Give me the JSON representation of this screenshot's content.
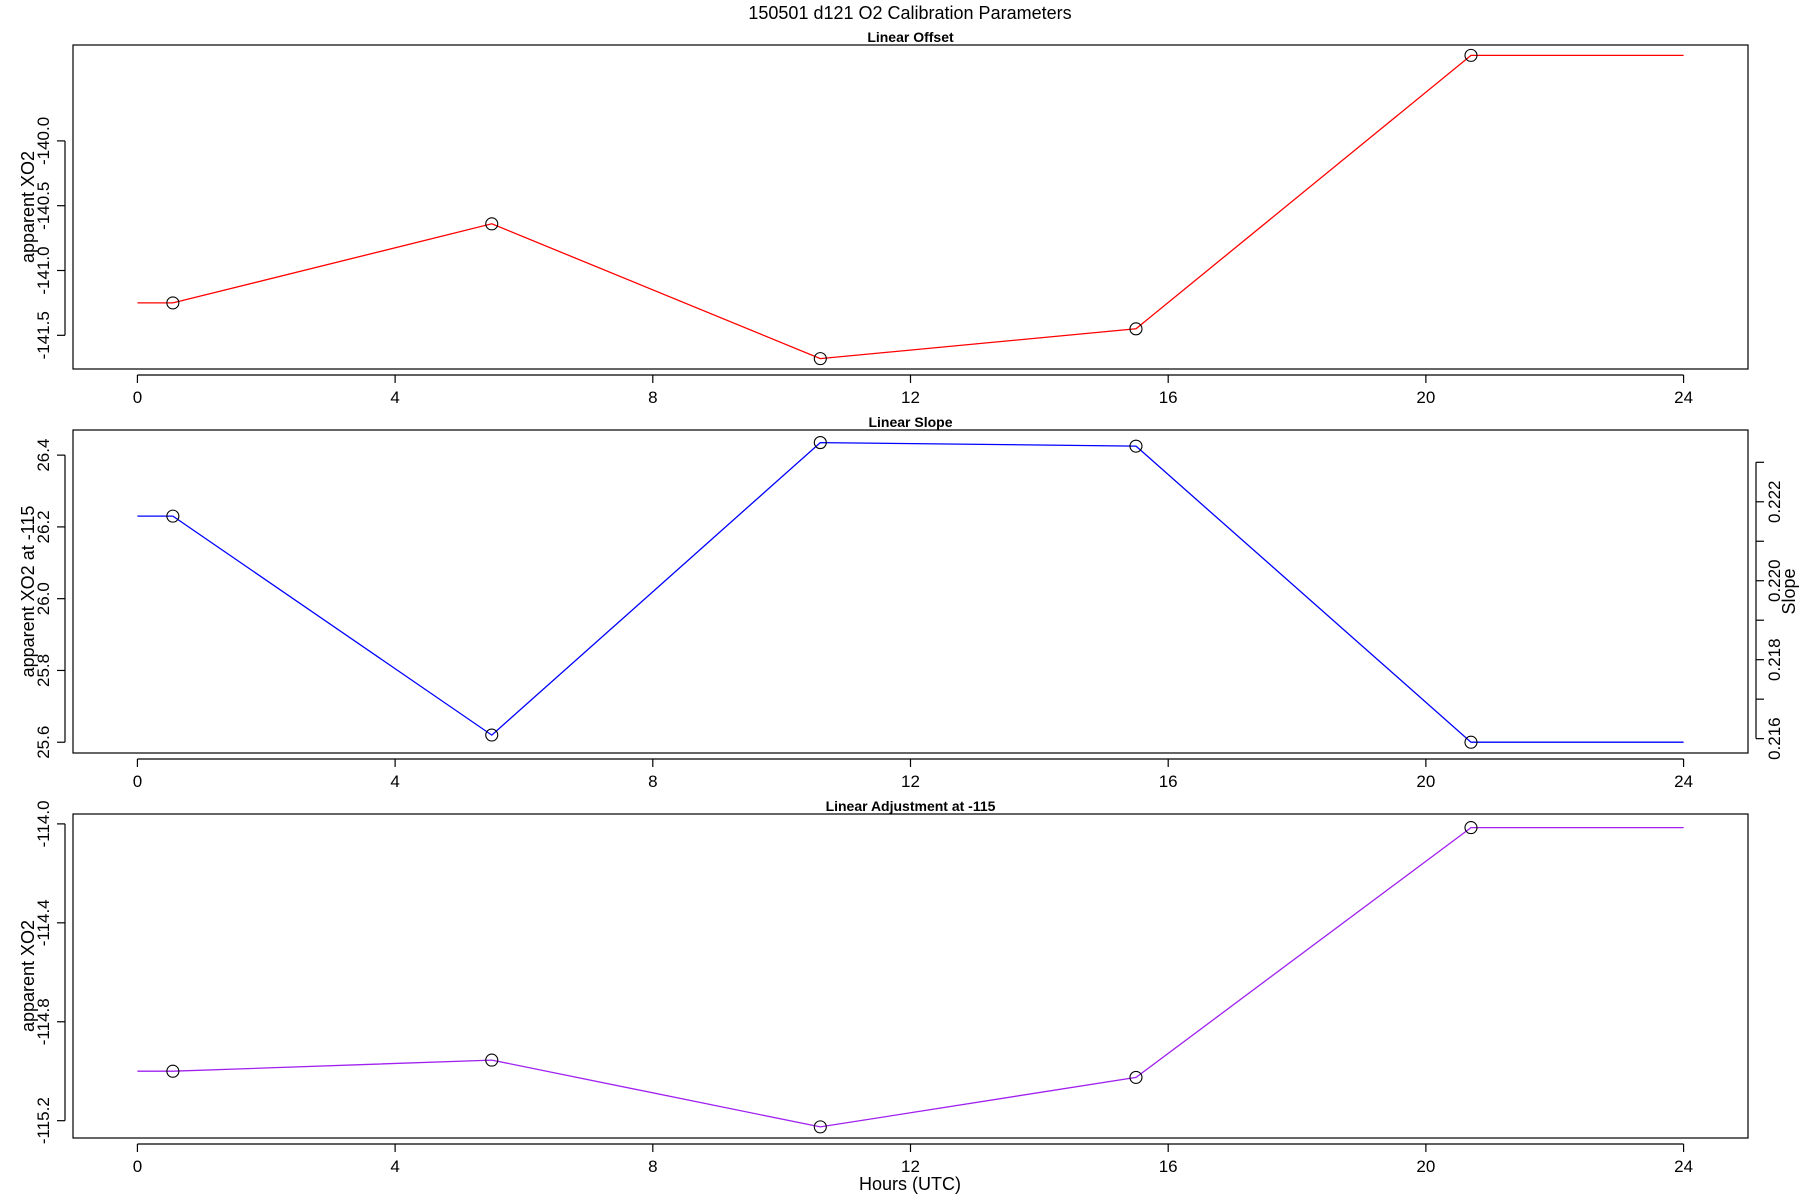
{
  "figure": {
    "title": "150501   d121   O2 Calibration Parameters",
    "xlabel": "Hours (UTC)"
  },
  "chart_data": [
    {
      "type": "line",
      "title": "Linear Offset",
      "xlabel": "",
      "ylabel": "apparent XO2",
      "color": "#ff0000",
      "xlim": [
        -1,
        25
      ],
      "ylim": [
        -141.76,
        -139.26
      ],
      "xticks": [
        0,
        4,
        8,
        12,
        16,
        20,
        24
      ],
      "xticklabels": [
        "0",
        "4",
        "8",
        "12",
        "16",
        "20",
        "24"
      ],
      "yticks": [
        -141.5,
        -141.0,
        -140.5,
        -140.0
      ],
      "yticklabels": [
        "-141.5",
        "-141.0",
        "-140.5",
        "-140.0"
      ],
      "line_x": [
        0,
        0.55,
        5.5,
        10.6,
        15.5,
        20.7,
        24
      ],
      "line_y": [
        -141.25,
        -141.25,
        -140.64,
        -141.68,
        -141.45,
        -139.34,
        -139.34
      ],
      "points_x": [
        0.55,
        5.5,
        10.6,
        15.5,
        20.7
      ],
      "points_y": [
        -141.25,
        -140.64,
        -141.68,
        -141.45,
        -139.34
      ]
    },
    {
      "type": "line",
      "title": "Linear Slope",
      "xlabel": "",
      "ylabel": "apparent XO2 at -115",
      "y2label": "Slope",
      "color": "#0000ff",
      "xlim": [
        -1,
        25
      ],
      "ylim": [
        25.57,
        26.47
      ],
      "xticks": [
        0,
        4,
        8,
        12,
        16,
        20,
        24
      ],
      "xticklabels": [
        "0",
        "4",
        "8",
        "12",
        "16",
        "20",
        "24"
      ],
      "yticks": [
        25.6,
        25.8,
        26.0,
        26.2,
        26.4
      ],
      "yticklabels": [
        "25.6",
        "25.8",
        "26.0",
        "26.2",
        "26.4"
      ],
      "y2ticks": [
        0.216,
        0.218,
        0.22,
        0.222
      ],
      "y2ticklabels": [
        "0.216",
        "0.218",
        "0.220",
        "0.222"
      ],
      "y2_at": [
        25.61,
        25.83,
        26.05,
        26.27
      ],
      "y2_minor_at": [
        25.72,
        25.94,
        26.16,
        26.38
      ],
      "line_x": [
        0,
        0.55,
        5.5,
        10.6,
        15.5,
        20.7,
        24
      ],
      "line_y": [
        26.23,
        26.23,
        25.62,
        26.435,
        26.425,
        25.6,
        25.6
      ],
      "points_x": [
        0.55,
        5.5,
        10.6,
        15.5,
        20.7
      ],
      "points_y": [
        26.23,
        25.62,
        26.435,
        26.425,
        25.6
      ]
    },
    {
      "type": "line",
      "title": "Linear Adjustment at -115",
      "xlabel": "Hours (UTC)",
      "ylabel": "apparent XO2",
      "color": "#a020f0",
      "xlim": [
        -1,
        25
      ],
      "ylim": [
        -115.27,
        -113.96
      ],
      "xticks": [
        0,
        4,
        8,
        12,
        16,
        20,
        24
      ],
      "xticklabels": [
        "0",
        "4",
        "8",
        "12",
        "16",
        "20",
        "24"
      ],
      "yticks": [
        -115.2,
        -114.8,
        -114.4,
        -114.0
      ],
      "yticklabels": [
        "-115.2",
        "-114.8",
        "-114.4",
        "-114.0"
      ],
      "line_x": [
        0,
        0.55,
        5.5,
        10.6,
        15.5,
        20.7,
        24
      ],
      "line_y": [
        -115.0,
        -115.0,
        -114.955,
        -115.225,
        -115.025,
        -114.015,
        -114.015
      ],
      "points_x": [
        0.55,
        5.5,
        10.6,
        15.5,
        20.7
      ],
      "points_y": [
        -115.0,
        -114.955,
        -115.225,
        -115.025,
        -114.015
      ]
    }
  ]
}
